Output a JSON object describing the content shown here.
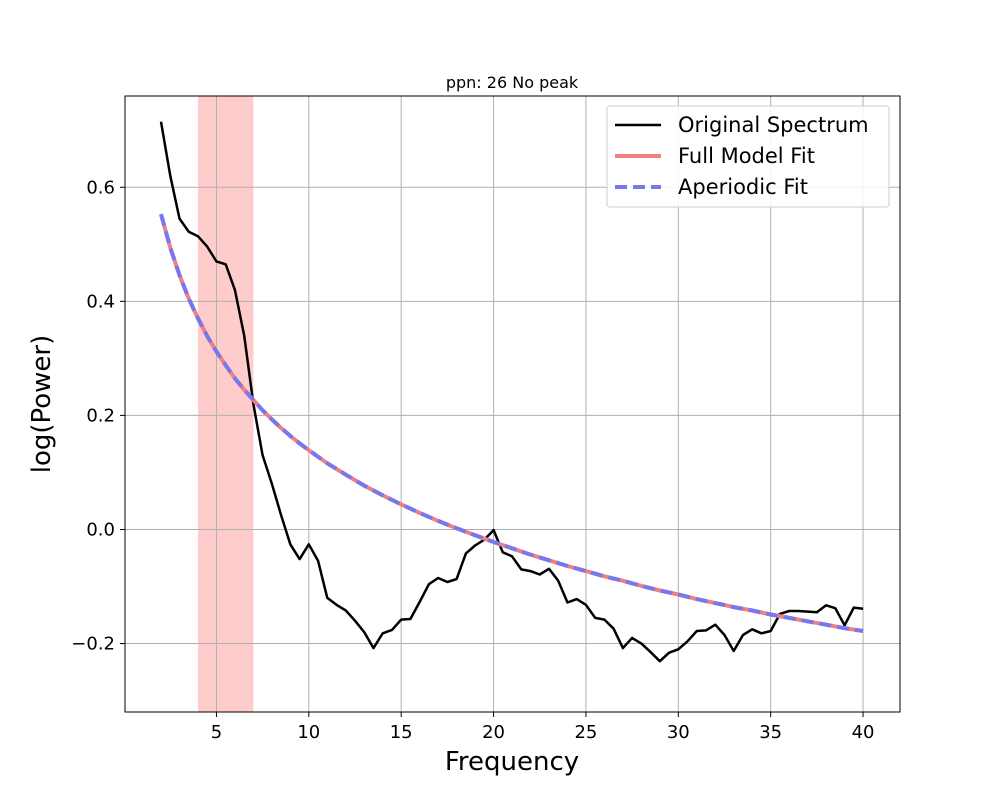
{
  "chart_data": {
    "type": "line",
    "title": "ppn: 26 No peak",
    "xlabel": "Frequency",
    "ylabel": "log(Power)",
    "xlim": [
      0.05,
      42.0
    ],
    "ylim": [
      -0.32,
      0.76
    ],
    "xticks": [
      5,
      10,
      15,
      20,
      25,
      30,
      35,
      40
    ],
    "xtick_labels": [
      "5",
      "10",
      "15",
      "20",
      "25",
      "30",
      "35",
      "40"
    ],
    "yticks": [
      -0.2,
      0.0,
      0.2,
      0.4,
      0.6
    ],
    "ytick_labels": [
      "−0.2",
      "0.0",
      "0.2",
      "0.4",
      "0.6"
    ],
    "grid": true,
    "legend_position": "top-right",
    "shaded_band": {
      "x_start": 4,
      "x_end": 7,
      "color": "#ffcccc"
    },
    "series": [
      {
        "name": "Original Spectrum",
        "color": "#000000",
        "style": "solid",
        "x": [
          2,
          2.5,
          3,
          3.5,
          4,
          4.5,
          5,
          5.5,
          6,
          6.5,
          7,
          7.5,
          8,
          8.5,
          9,
          9.5,
          10,
          10.5,
          11,
          11.5,
          12,
          12.5,
          13,
          13.5,
          14,
          14.5,
          15,
          15.5,
          16,
          16.5,
          17,
          17.5,
          18,
          18.5,
          19,
          19.5,
          20,
          20.5,
          21,
          21.5,
          22,
          22.5,
          23,
          23.5,
          24,
          24.5,
          25,
          25.5,
          26,
          26.5,
          27,
          27.5,
          28,
          28.5,
          29,
          29.5,
          30,
          30.5,
          31,
          31.5,
          32,
          32.5,
          33,
          33.5,
          34,
          34.5,
          35,
          35.5,
          36,
          36.5,
          37,
          37.5,
          38,
          38.5,
          39,
          39.5,
          40
        ],
        "y": [
          0.715,
          0.62,
          0.545,
          0.522,
          0.514,
          0.496,
          0.47,
          0.465,
          0.42,
          0.34,
          0.22,
          0.13,
          0.08,
          0.025,
          -0.026,
          -0.052,
          -0.026,
          -0.055,
          -0.12,
          -0.132,
          -0.142,
          -0.16,
          -0.18,
          -0.208,
          -0.182,
          -0.176,
          -0.158,
          -0.157,
          -0.127,
          -0.096,
          -0.085,
          -0.092,
          -0.087,
          -0.042,
          -0.028,
          -0.018,
          -0.001,
          -0.04,
          -0.047,
          -0.07,
          -0.073,
          -0.079,
          -0.069,
          -0.09,
          -0.128,
          -0.122,
          -0.132,
          -0.155,
          -0.158,
          -0.174,
          -0.208,
          -0.19,
          -0.2,
          -0.215,
          -0.231,
          -0.216,
          -0.21,
          -0.196,
          -0.178,
          -0.177,
          -0.167,
          -0.185,
          -0.213,
          -0.185,
          -0.175,
          -0.182,
          -0.178,
          -0.148,
          -0.143,
          -0.143,
          -0.144,
          -0.145,
          -0.133,
          -0.138,
          -0.168,
          -0.137,
          -0.139
        ]
      },
      {
        "name": "Full Model Fit",
        "color": "#f08080",
        "style": "solid",
        "x": [
          2,
          2.5,
          3,
          3.5,
          4,
          4.5,
          5,
          5.5,
          6,
          6.5,
          7,
          7.5,
          8,
          8.5,
          9,
          9.5,
          10,
          11,
          12,
          13,
          14,
          15,
          16,
          17,
          18,
          19,
          20,
          21,
          22,
          23,
          24,
          25,
          26,
          27,
          28,
          29,
          30,
          31,
          32,
          33,
          34,
          35,
          36,
          37,
          38,
          39,
          40
        ],
        "y": [
          0.553,
          0.494,
          0.446,
          0.405,
          0.37,
          0.339,
          0.312,
          0.288,
          0.265,
          0.245,
          0.227,
          0.209,
          0.193,
          0.178,
          0.164,
          0.151,
          0.139,
          0.116,
          0.096,
          0.077,
          0.06,
          0.044,
          0.029,
          0.015,
          0.002,
          -0.01,
          -0.022,
          -0.033,
          -0.044,
          -0.054,
          -0.064,
          -0.073,
          -0.082,
          -0.09,
          -0.099,
          -0.107,
          -0.114,
          -0.122,
          -0.129,
          -0.136,
          -0.142,
          -0.149,
          -0.155,
          -0.161,
          -0.167,
          -0.173,
          -0.178
        ]
      },
      {
        "name": "Aperiodic Fit",
        "color": "#7777ee",
        "style": "dashed",
        "x": [
          2,
          2.5,
          3,
          3.5,
          4,
          4.5,
          5,
          5.5,
          6,
          6.5,
          7,
          7.5,
          8,
          8.5,
          9,
          9.5,
          10,
          11,
          12,
          13,
          14,
          15,
          16,
          17,
          18,
          19,
          20,
          21,
          22,
          23,
          24,
          25,
          26,
          27,
          28,
          29,
          30,
          31,
          32,
          33,
          34,
          35,
          36,
          37,
          38,
          39,
          40
        ],
        "y": [
          0.553,
          0.494,
          0.446,
          0.405,
          0.37,
          0.339,
          0.312,
          0.288,
          0.265,
          0.245,
          0.227,
          0.209,
          0.193,
          0.178,
          0.164,
          0.151,
          0.139,
          0.116,
          0.096,
          0.077,
          0.06,
          0.044,
          0.029,
          0.015,
          0.002,
          -0.01,
          -0.022,
          -0.033,
          -0.044,
          -0.054,
          -0.064,
          -0.073,
          -0.082,
          -0.09,
          -0.099,
          -0.107,
          -0.114,
          -0.122,
          -0.129,
          -0.136,
          -0.142,
          -0.149,
          -0.155,
          -0.161,
          -0.167,
          -0.173,
          -0.178
        ]
      }
    ]
  }
}
